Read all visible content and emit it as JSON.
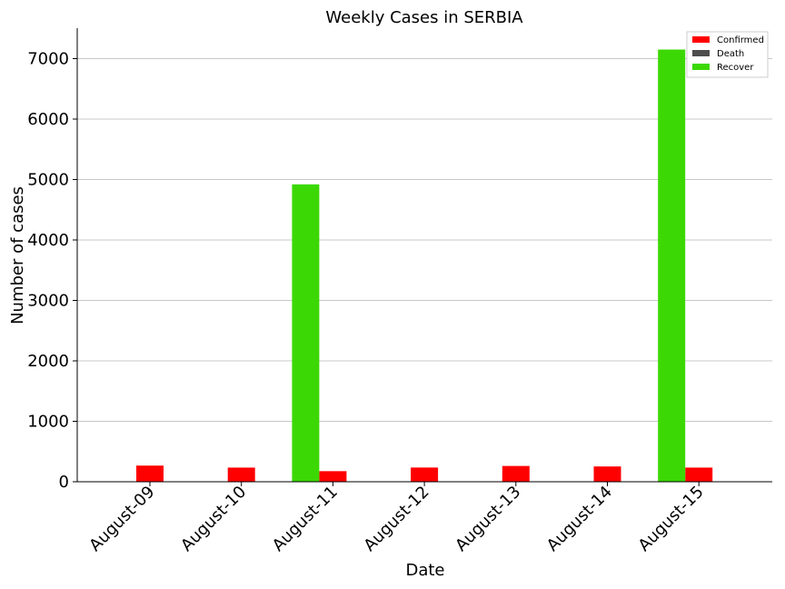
{
  "chart_data": {
    "type": "bar",
    "title": "Weekly Cases in SERBIA",
    "xlabel": "Date",
    "ylabel": "Number of cases",
    "categories": [
      "August-09",
      "August-10",
      "August-11",
      "August-12",
      "August-13",
      "August-14",
      "August-15"
    ],
    "series": [
      {
        "name": "Confirmed",
        "color": "#ff0000",
        "values": [
          267,
          234,
          175,
          235,
          261,
          253,
          234
        ]
      },
      {
        "name": "Death",
        "color": "#4d4d4d",
        "values": [
          2,
          2,
          3,
          2,
          3,
          2,
          3
        ]
      },
      {
        "name": "Recover",
        "color": "#3cd805",
        "values": [
          0,
          0,
          4920,
          0,
          0,
          0,
          7150
        ]
      }
    ],
    "ylim": [
      0,
      7500
    ],
    "yticks": [
      0,
      1000,
      2000,
      3000,
      4000,
      5000,
      6000,
      7000
    ],
    "grid": "horizontal",
    "legend": "top-right"
  }
}
